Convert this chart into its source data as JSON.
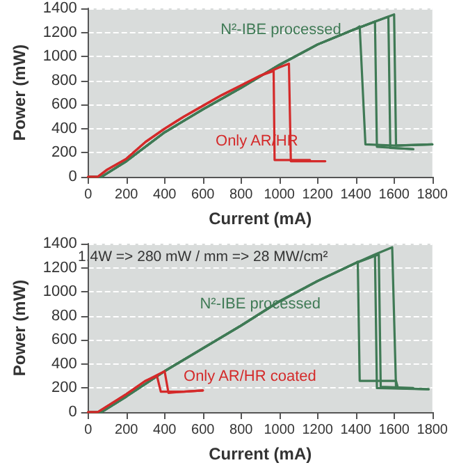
{
  "chart_data": [
    {
      "type": "line",
      "xlabel": "Current (mA)",
      "ylabel": "Power (mW)",
      "xlim": [
        0,
        1800
      ],
      "xticks": [
        0,
        200,
        400,
        600,
        800,
        1000,
        1200,
        1400,
        1600,
        1800
      ],
      "ylim": [
        0,
        1400
      ],
      "yticks": [
        0,
        200,
        400,
        600,
        800,
        1000,
        1200,
        1400
      ],
      "grid": "y",
      "marker": "none",
      "line_style": "solid",
      "series": [
        {
          "name": "N²-IBE processed",
          "color": "#3f7a55",
          "x": [
            0,
            70,
            200,
            400,
            600,
            800,
            1000,
            1200,
            1400,
            1420,
            1450,
            1600,
            1800
          ],
          "values": [
            0,
            0,
            130,
            370,
            560,
            740,
            930,
            1100,
            1230,
            1250,
            270,
            260,
            270
          ]
        },
        {
          "color": "#3f7a55",
          "x": [
            0,
            70,
            200,
            400,
            600,
            800,
            1000,
            1200,
            1400,
            1500,
            1510,
            1600,
            1700
          ],
          "values": [
            0,
            0,
            130,
            370,
            560,
            740,
            930,
            1100,
            1230,
            1290,
            250,
            240,
            230
          ]
        },
        {
          "color": "#3f7a55",
          "x": [
            0,
            70,
            200,
            400,
            600,
            800,
            1000,
            1200,
            1400,
            1500,
            1570,
            1580,
            1700
          ],
          "values": [
            0,
            0,
            130,
            370,
            560,
            740,
            930,
            1100,
            1230,
            1290,
            1330,
            240,
            230
          ]
        },
        {
          "color": "#3f7a55",
          "x": [
            0,
            70,
            200,
            400,
            600,
            800,
            1000,
            1200,
            1400,
            1500,
            1600,
            1610,
            1800
          ],
          "values": [
            0,
            0,
            130,
            370,
            560,
            740,
            930,
            1100,
            1230,
            1290,
            1350,
            260,
            270
          ]
        },
        {
          "name": "Only AR/HR",
          "color": "#d42a2a",
          "x": [
            0,
            50,
            100,
            200,
            300,
            400,
            500,
            600,
            700,
            800,
            900,
            970,
            975,
            1100,
            1160
          ],
          "values": [
            0,
            0,
            60,
            150,
            290,
            400,
            500,
            590,
            680,
            760,
            840,
            880,
            140,
            140,
            140
          ]
        },
        {
          "color": "#d42a2a",
          "x": [
            0,
            50,
            100,
            200,
            300,
            400,
            500,
            600,
            700,
            800,
            900,
            1000,
            1050,
            1060,
            1240
          ],
          "values": [
            0,
            0,
            60,
            150,
            290,
            400,
            500,
            590,
            680,
            760,
            840,
            910,
            940,
            130,
            130
          ]
        }
      ]
    },
    {
      "type": "line",
      "xlabel": "Current (mA)",
      "ylabel": "Power (mW)",
      "xlim": [
        0,
        1800
      ],
      "xticks": [
        0,
        200,
        400,
        600,
        800,
        1000,
        1200,
        1400,
        1600,
        1800
      ],
      "ylim": [
        0,
        1400
      ],
      "yticks": [
        0,
        200,
        400,
        600,
        800,
        1000,
        1200,
        1400
      ],
      "grid": "y",
      "marker": "none",
      "line_style": "solid",
      "series": [
        {
          "name": "N²-IBE processed",
          "color": "#3f7a55",
          "x": [
            0,
            70,
            200,
            400,
            600,
            800,
            1000,
            1200,
            1400,
            1410,
            1420,
            1600,
            1610,
            1620
          ],
          "values": [
            0,
            0,
            130,
            340,
            530,
            720,
            920,
            1090,
            1240,
            1250,
            260,
            260,
            260,
            200
          ]
        },
        {
          "color": "#3f7a55",
          "x": [
            0,
            70,
            200,
            400,
            600,
            800,
            1000,
            1200,
            1400,
            1500,
            1510,
            1780
          ],
          "values": [
            0,
            0,
            130,
            340,
            530,
            720,
            920,
            1090,
            1240,
            1300,
            200,
            190
          ]
        },
        {
          "color": "#3f7a55",
          "x": [
            0,
            70,
            200,
            400,
            600,
            800,
            1000,
            1200,
            1400,
            1520,
            1530,
            1700
          ],
          "values": [
            0,
            0,
            130,
            340,
            530,
            720,
            920,
            1090,
            1240,
            1310,
            210,
            200
          ]
        },
        {
          "color": "#3f7a55",
          "x": [
            0,
            70,
            200,
            400,
            600,
            800,
            1000,
            1200,
            1400,
            1500,
            1590,
            1610,
            1780
          ],
          "values": [
            0,
            0,
            130,
            340,
            530,
            720,
            920,
            1090,
            1240,
            1310,
            1370,
            200,
            190
          ]
        },
        {
          "name": "Only AR/HR coated",
          "color": "#d42a2a",
          "x": [
            0,
            50,
            200,
            300,
            360,
            380,
            500,
            600
          ],
          "values": [
            0,
            0,
            150,
            260,
            300,
            170,
            170,
            180
          ]
        },
        {
          "color": "#d42a2a",
          "x": [
            0,
            50,
            200,
            300,
            400,
            420,
            500,
            600
          ],
          "values": [
            0,
            0,
            150,
            260,
            340,
            160,
            170,
            180
          ]
        }
      ],
      "annotations": [
        "1.4W => 280 mW / mm => 28 MW/cm²"
      ]
    }
  ]
}
